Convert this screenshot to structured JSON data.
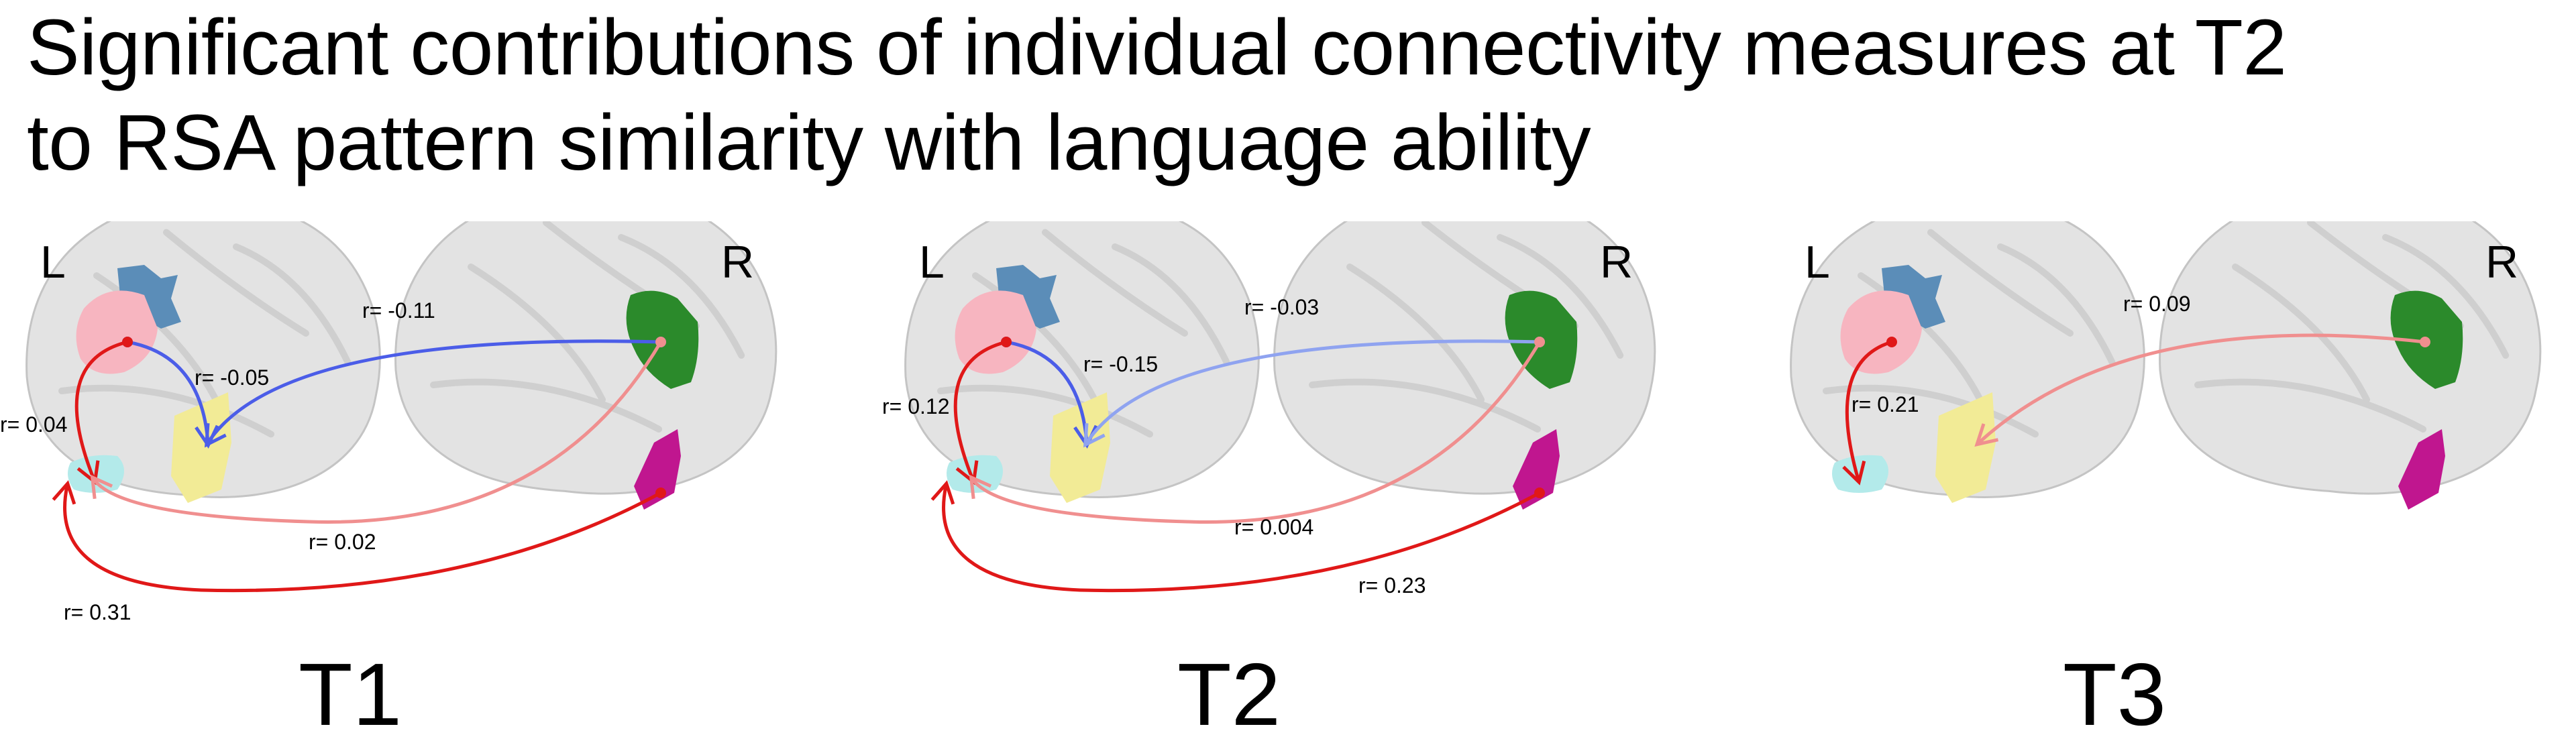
{
  "title": {
    "line1": "Significant contributions of individual connectivity measures at T2",
    "line2": "to RSA pattern similarity with language ability"
  },
  "hemisphere_labels": {
    "left": "L",
    "right": "R"
  },
  "colors": {
    "brain": "#e3e3e3",
    "brain_outline": "#c4c4c4",
    "region_blue": "#5b8db8",
    "region_pink": "#f7b5c0",
    "region_yellow": "#f2eb96",
    "region_cyan": "#b3eaea",
    "region_green": "#2b8a2b",
    "region_magenta": "#c0168f",
    "neg_strong": "#4b5de8",
    "neg_weak": "#8fa3f0",
    "pos_strong": "#e01818",
    "pos_weak": "#f08f8f"
  },
  "panels": [
    {
      "label": "T1",
      "connections": [
        {
          "from": "pink",
          "to": "yellow",
          "r": "r= -0.05",
          "sign": "neg",
          "strength": "strong"
        },
        {
          "from": "green",
          "to": "yellow",
          "r": "r= -0.11",
          "sign": "neg",
          "strength": "strong"
        },
        {
          "from": "pink",
          "to": "cyan",
          "r": "r= 0.04",
          "sign": "pos",
          "strength": "strong"
        },
        {
          "from": "green",
          "to": "cyan",
          "r": "r= 0.02",
          "sign": "pos",
          "strength": "weak"
        },
        {
          "from": "magenta",
          "to": "cyan",
          "r": "r= 0.31",
          "sign": "pos",
          "strength": "strong"
        }
      ]
    },
    {
      "label": "T2",
      "connections": [
        {
          "from": "pink",
          "to": "yellow",
          "r": "r= -0.15",
          "sign": "neg",
          "strength": "strong"
        },
        {
          "from": "green",
          "to": "yellow",
          "r": "r= -0.03",
          "sign": "neg",
          "strength": "weak"
        },
        {
          "from": "pink",
          "to": "cyan",
          "r": "r= 0.12",
          "sign": "pos",
          "strength": "strong"
        },
        {
          "from": "green",
          "to": "cyan",
          "r": "r= 0.004",
          "sign": "pos",
          "strength": "weak"
        },
        {
          "from": "magenta",
          "to": "cyan",
          "r": "r= 0.23",
          "sign": "pos",
          "strength": "strong"
        }
      ]
    },
    {
      "label": "T3",
      "connections": [
        {
          "from": "pink",
          "to": "cyan",
          "r": "r= 0.21",
          "sign": "pos",
          "strength": "strong"
        },
        {
          "from": "green",
          "to": "yellow",
          "r": "r= 0.09",
          "sign": "pos",
          "strength": "weak"
        }
      ]
    }
  ]
}
